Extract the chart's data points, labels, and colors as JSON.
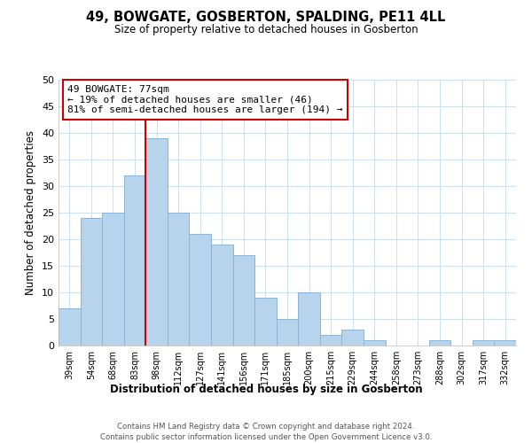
{
  "title": "49, BOWGATE, GOSBERTON, SPALDING, PE11 4LL",
  "subtitle": "Size of property relative to detached houses in Gosberton",
  "xlabel": "Distribution of detached houses by size in Gosberton",
  "ylabel": "Number of detached properties",
  "categories": [
    "39sqm",
    "54sqm",
    "68sqm",
    "83sqm",
    "98sqm",
    "112sqm",
    "127sqm",
    "141sqm",
    "156sqm",
    "171sqm",
    "185sqm",
    "200sqm",
    "215sqm",
    "229sqm",
    "244sqm",
    "258sqm",
    "273sqm",
    "288sqm",
    "302sqm",
    "317sqm",
    "332sqm"
  ],
  "values": [
    7,
    24,
    25,
    32,
    39,
    25,
    21,
    19,
    17,
    9,
    5,
    10,
    2,
    3,
    1,
    0,
    0,
    1,
    0,
    1,
    1
  ],
  "bar_color": "#b8d4ed",
  "bar_edge_color": "#8ab4d8",
  "vline_x": 3.5,
  "vline_color": "#cc0000",
  "annotation_text": "49 BOWGATE: 77sqm\n← 19% of detached houses are smaller (46)\n81% of semi-detached houses are larger (194) →",
  "annotation_box_color": "#ffffff",
  "annotation_box_edge_color": "#cc0000",
  "ylim": [
    0,
    50
  ],
  "yticks": [
    0,
    5,
    10,
    15,
    20,
    25,
    30,
    35,
    40,
    45,
    50
  ],
  "grid_color": "#cde0f0",
  "background_color": "#ffffff",
  "footer_line1": "Contains HM Land Registry data © Crown copyright and database right 2024.",
  "footer_line2": "Contains public sector information licensed under the Open Government Licence v3.0."
}
